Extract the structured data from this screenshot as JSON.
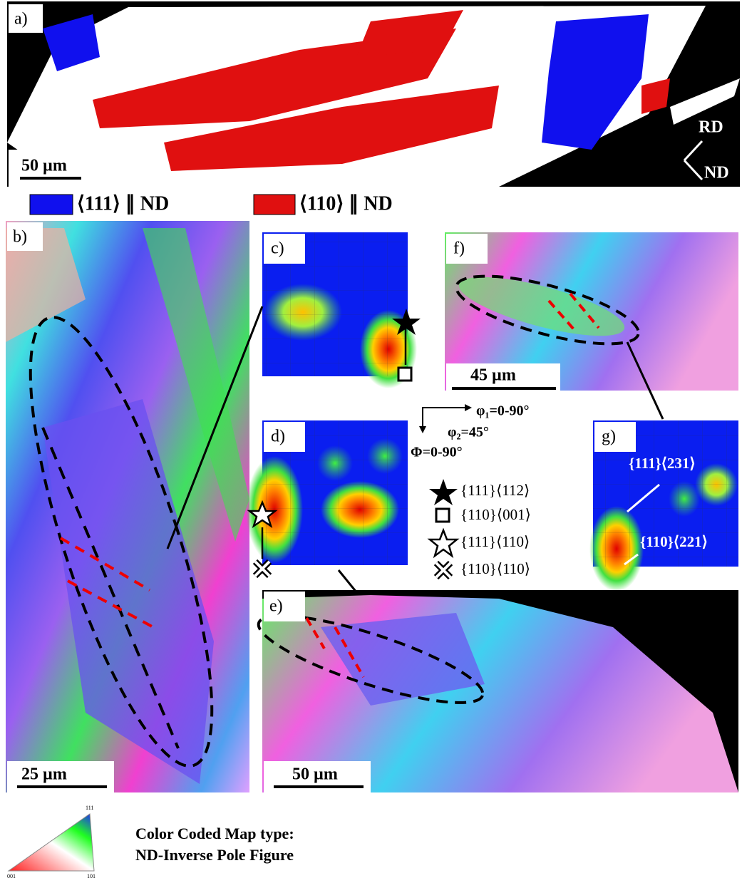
{
  "panels": {
    "a": {
      "label": "a)",
      "scale_bar": "50 µm",
      "directions": [
        "RD",
        "ND"
      ]
    },
    "b": {
      "label": "b)",
      "scale_bar": "25 µm"
    },
    "c": {
      "label": "c)"
    },
    "d": {
      "label": "d)"
    },
    "e": {
      "label": "e)",
      "scale_bar": "50 µm"
    },
    "f": {
      "label": "f)",
      "scale_bar": "45 µm"
    },
    "g": {
      "label": "g)",
      "annotations": [
        "{111}⟨231⟩",
        "{110}⟨221⟩"
      ]
    }
  },
  "legend": [
    "⟨111⟩ ∥ ND",
    "⟨110⟩ ∥ ND"
  ],
  "odf_axes": {
    "phi1": "φ₁=0-90°",
    "phi2": "φ₂=45°",
    "Phi": "Φ=0-90°"
  },
  "orientations": [
    "{111}⟨112⟩",
    "{110}⟨001⟩",
    "{111}⟨110⟩",
    "{110}⟨110⟩"
  ],
  "ipf_key": {
    "title": "Color Coded Map type:",
    "subtitle": "ND-Inverse Pole Figure",
    "corners": [
      "111",
      "001",
      "101"
    ]
  }
}
